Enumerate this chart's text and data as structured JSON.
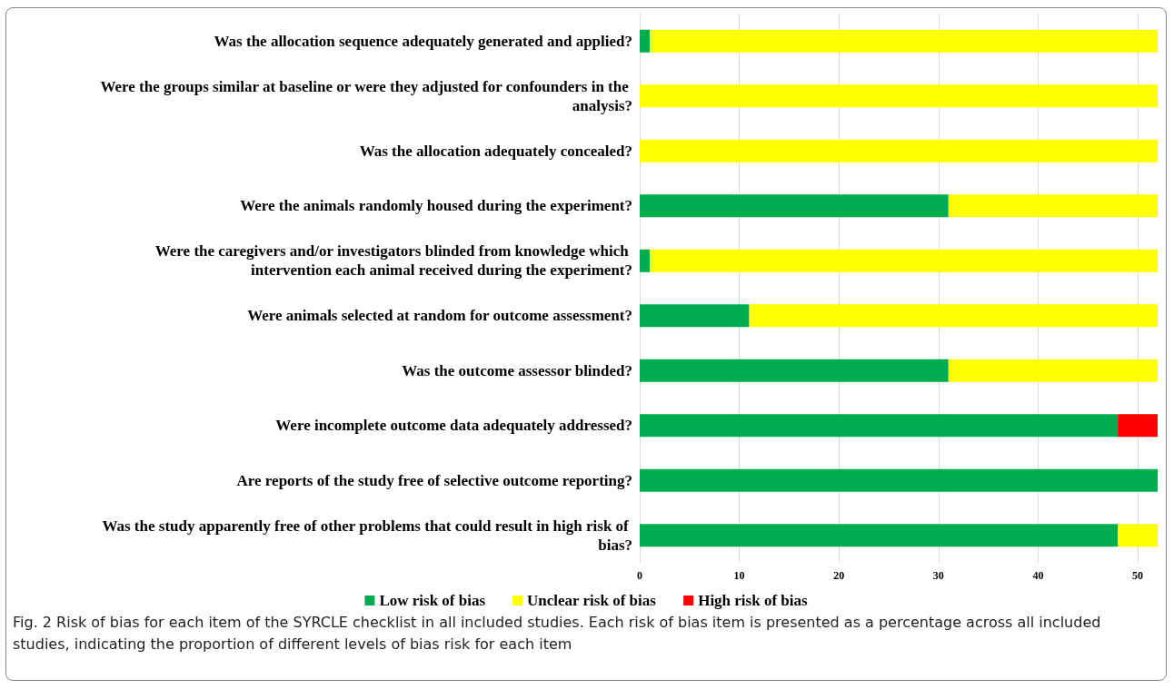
{
  "chart_data": {
    "type": "bar",
    "orientation": "horizontal",
    "stacked": true,
    "categories": [
      "Was the allocation sequence adequately generated and applied?",
      "Were the groups similar at baseline or were they adjusted for confounders in the analysis?",
      "Was the allocation adequately concealed?",
      "Were the animals randomly housed during the experiment?",
      "Were the caregivers and/or investigators blinded from knowledge which intervention each animal received during the experiment?",
      "Were animals selected at random for outcome assessment?",
      "Was the outcome assessor blinded?",
      "Were incomplete outcome data adequately addressed?",
      "Are reports of the study free of selective outcome reporting?",
      "Was the study apparently free of other problems that could result in high risk of bias?"
    ],
    "series": [
      {
        "name": "Low risk of bias",
        "color": "#00ad4e",
        "values": [
          1,
          0,
          0,
          31,
          1,
          11,
          31,
          48,
          52,
          48
        ]
      },
      {
        "name": "Unclear risk of bias",
        "color": "#ffff00",
        "values": [
          51,
          52,
          52,
          21,
          51,
          41,
          21,
          0,
          0,
          4
        ]
      },
      {
        "name": "High risk of bias",
        "color": "#ff0000",
        "values": [
          0,
          0,
          0,
          0,
          0,
          0,
          0,
          4,
          0,
          0
        ]
      }
    ],
    "xlim": [
      0,
      52
    ],
    "xticks": [
      0,
      10,
      20,
      30,
      40,
      50
    ],
    "grid": "x",
    "legend": "bottom",
    "annotations": [
      "Fig. 2 Risk of bias for each item of the SYRCLE checklist in all included studies. Each risk of bias item is presented as a percentage across all included studies, indicating the proportion of different levels of bias risk for each item"
    ]
  }
}
